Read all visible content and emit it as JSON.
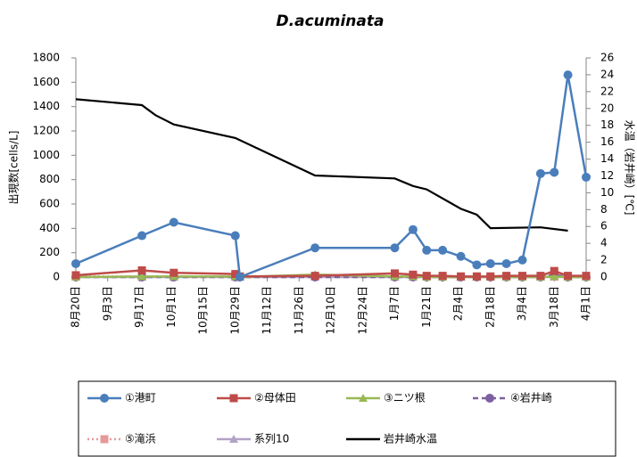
{
  "chart_data": {
    "type": "line",
    "title": "D.acuminata",
    "y_label": "出現数[cells/L]",
    "y2_label": "水温（岩井崎）[℃]",
    "xlim": [
      0,
      224
    ],
    "xticks": [
      {
        "value": 0,
        "label": "8月20日"
      },
      {
        "value": 14,
        "label": "9月3日"
      },
      {
        "value": 28,
        "label": "9月17日"
      },
      {
        "value": 42,
        "label": "10月1日"
      },
      {
        "value": 56,
        "label": "10月15日"
      },
      {
        "value": 70,
        "label": "10月29日"
      },
      {
        "value": 84,
        "label": "11月12日"
      },
      {
        "value": 98,
        "label": "11月26日"
      },
      {
        "value": 112,
        "label": "12月10日"
      },
      {
        "value": 126,
        "label": "12月24日"
      },
      {
        "value": 140,
        "label": "1月7日"
      },
      {
        "value": 154,
        "label": "1月21日"
      },
      {
        "value": 168,
        "label": "2月4日"
      },
      {
        "value": 182,
        "label": "2月18日"
      },
      {
        "value": 196,
        "label": "3月4日"
      },
      {
        "value": 210,
        "label": "3月18日"
      },
      {
        "value": 224,
        "label": "4月1日"
      }
    ],
    "ylim": [
      0,
      1800
    ],
    "yticks": [
      0,
      200,
      400,
      600,
      800,
      1000,
      1200,
      1400,
      1600,
      1800
    ],
    "y2lim": [
      0,
      26
    ],
    "y2ticks": [
      0,
      2,
      4,
      6,
      8,
      10,
      12,
      14,
      16,
      18,
      20,
      22,
      24,
      26
    ],
    "x": [
      0,
      29,
      43,
      70,
      72,
      105,
      140,
      148,
      154,
      161,
      169,
      176,
      182,
      189,
      196,
      204,
      210,
      216,
      224
    ],
    "series": [
      {
        "name": "①港町",
        "color": "#4a7ebb",
        "marker": "circle",
        "dash": "solid",
        "values": [
          110,
          340,
          450,
          340,
          0,
          240,
          240,
          390,
          220,
          220,
          170,
          100,
          110,
          110,
          140,
          850,
          860,
          1660,
          820
        ]
      },
      {
        "name": "②母体田",
        "color": "#be4b48",
        "marker": "square",
        "dash": "solid",
        "values": [
          15,
          55,
          35,
          25,
          5,
          10,
          30,
          20,
          10,
          10,
          5,
          5,
          5,
          10,
          10,
          10,
          50,
          10,
          10
        ]
      },
      {
        "name": "③ニツ根",
        "color": "#98b954",
        "marker": "triangle",
        "dash": "solid",
        "values": [
          0,
          5,
          5,
          5,
          0,
          20,
          5,
          5,
          0,
          0,
          0,
          0,
          0,
          0,
          0,
          0,
          5,
          0,
          0
        ]
      },
      {
        "name": "④岩井崎",
        "color": "#7d60a0",
        "marker": "circle",
        "dash": "dashed",
        "values": [
          0,
          0,
          0,
          0,
          0,
          0,
          0,
          0,
          0,
          0,
          0,
          0,
          0,
          0,
          0,
          0,
          20,
          0,
          0
        ]
      },
      {
        "name": "⑤滝浜",
        "color": "#e6999a",
        "marker": "square",
        "dash": "dotted",
        "values": [
          5,
          5,
          5,
          5,
          5,
          5,
          5,
          5,
          5,
          5,
          5,
          5,
          5,
          5,
          5,
          5,
          5,
          5,
          5
        ]
      },
      {
        "name": "系列10",
        "color": "#b3a2c7",
        "marker": "triangle",
        "dash": "solid",
        "values": [
          0,
          0,
          0,
          0,
          0,
          0,
          0,
          0,
          0,
          0,
          0,
          0,
          0,
          0,
          0,
          0,
          0,
          0,
          0
        ]
      },
      {
        "name": "岩井崎水温",
        "color": "#000000",
        "marker": "none",
        "dash": "solid",
        "axis": "y2",
        "x": [
          0,
          29,
          35,
          43,
          70,
          105,
          140,
          148,
          154,
          169,
          176,
          182,
          204,
          216
        ],
        "values": [
          21.1,
          20.4,
          19.2,
          18.1,
          16.5,
          12.05,
          11.7,
          10.8,
          10.4,
          8.1,
          7.4,
          5.8,
          5.9,
          5.5
        ]
      }
    ]
  }
}
